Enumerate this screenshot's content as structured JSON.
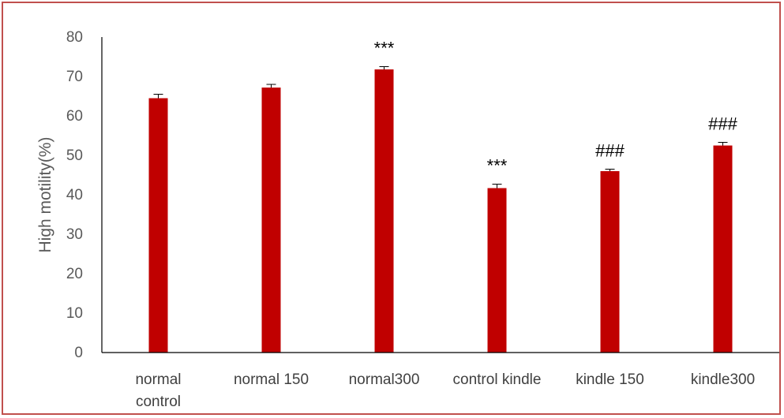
{
  "chart_data": {
    "type": "bar",
    "title": "",
    "xlabel": "",
    "ylabel": "High motility(%)",
    "ylim": [
      0,
      80
    ],
    "yticks": [
      0,
      10,
      20,
      30,
      40,
      50,
      60,
      70,
      80
    ],
    "grid": false,
    "categories": [
      [
        "normal",
        "control"
      ],
      [
        "normal 150"
      ],
      [
        "normal300"
      ],
      [
        "control kindle"
      ],
      [
        "kindle 150"
      ],
      [
        "kindle300"
      ]
    ],
    "values": [
      64.5,
      67.2,
      71.8,
      41.7,
      46.0,
      52.5
    ],
    "errors": [
      1.0,
      0.8,
      0.7,
      1.0,
      0.5,
      0.8
    ],
    "annotations": [
      "",
      "",
      "***",
      "***",
      "###",
      "###"
    ],
    "bar_color": "#c00000"
  }
}
